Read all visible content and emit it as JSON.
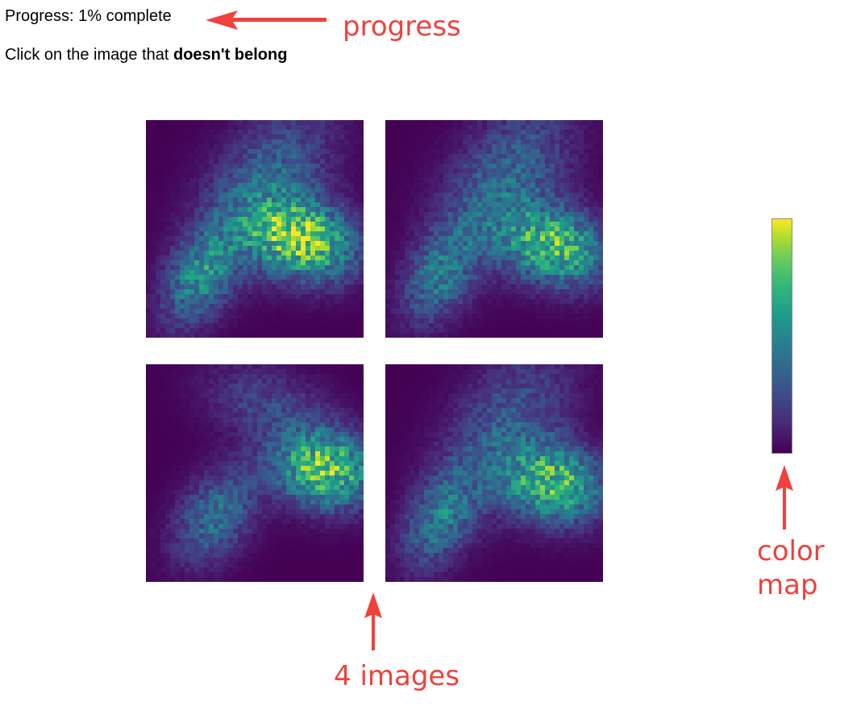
{
  "progress": {
    "label": "Progress:",
    "value_percent": 1,
    "text": "1% complete"
  },
  "instruction": {
    "prefix": "Click on the image that ",
    "emphasis": "doesn't belong"
  },
  "images": [
    {
      "id": "image-1"
    },
    {
      "id": "image-2"
    },
    {
      "id": "image-3"
    },
    {
      "id": "image-4"
    }
  ],
  "colormap": {
    "name": "viridis",
    "colors": [
      "#440154",
      "#3e4a89",
      "#26828e",
      "#35b779",
      "#fde725"
    ]
  },
  "annotations": {
    "progress": "progress",
    "images": "4 images",
    "colormap_line1": "color",
    "colormap_line2": "map",
    "color": "#f0413c"
  }
}
